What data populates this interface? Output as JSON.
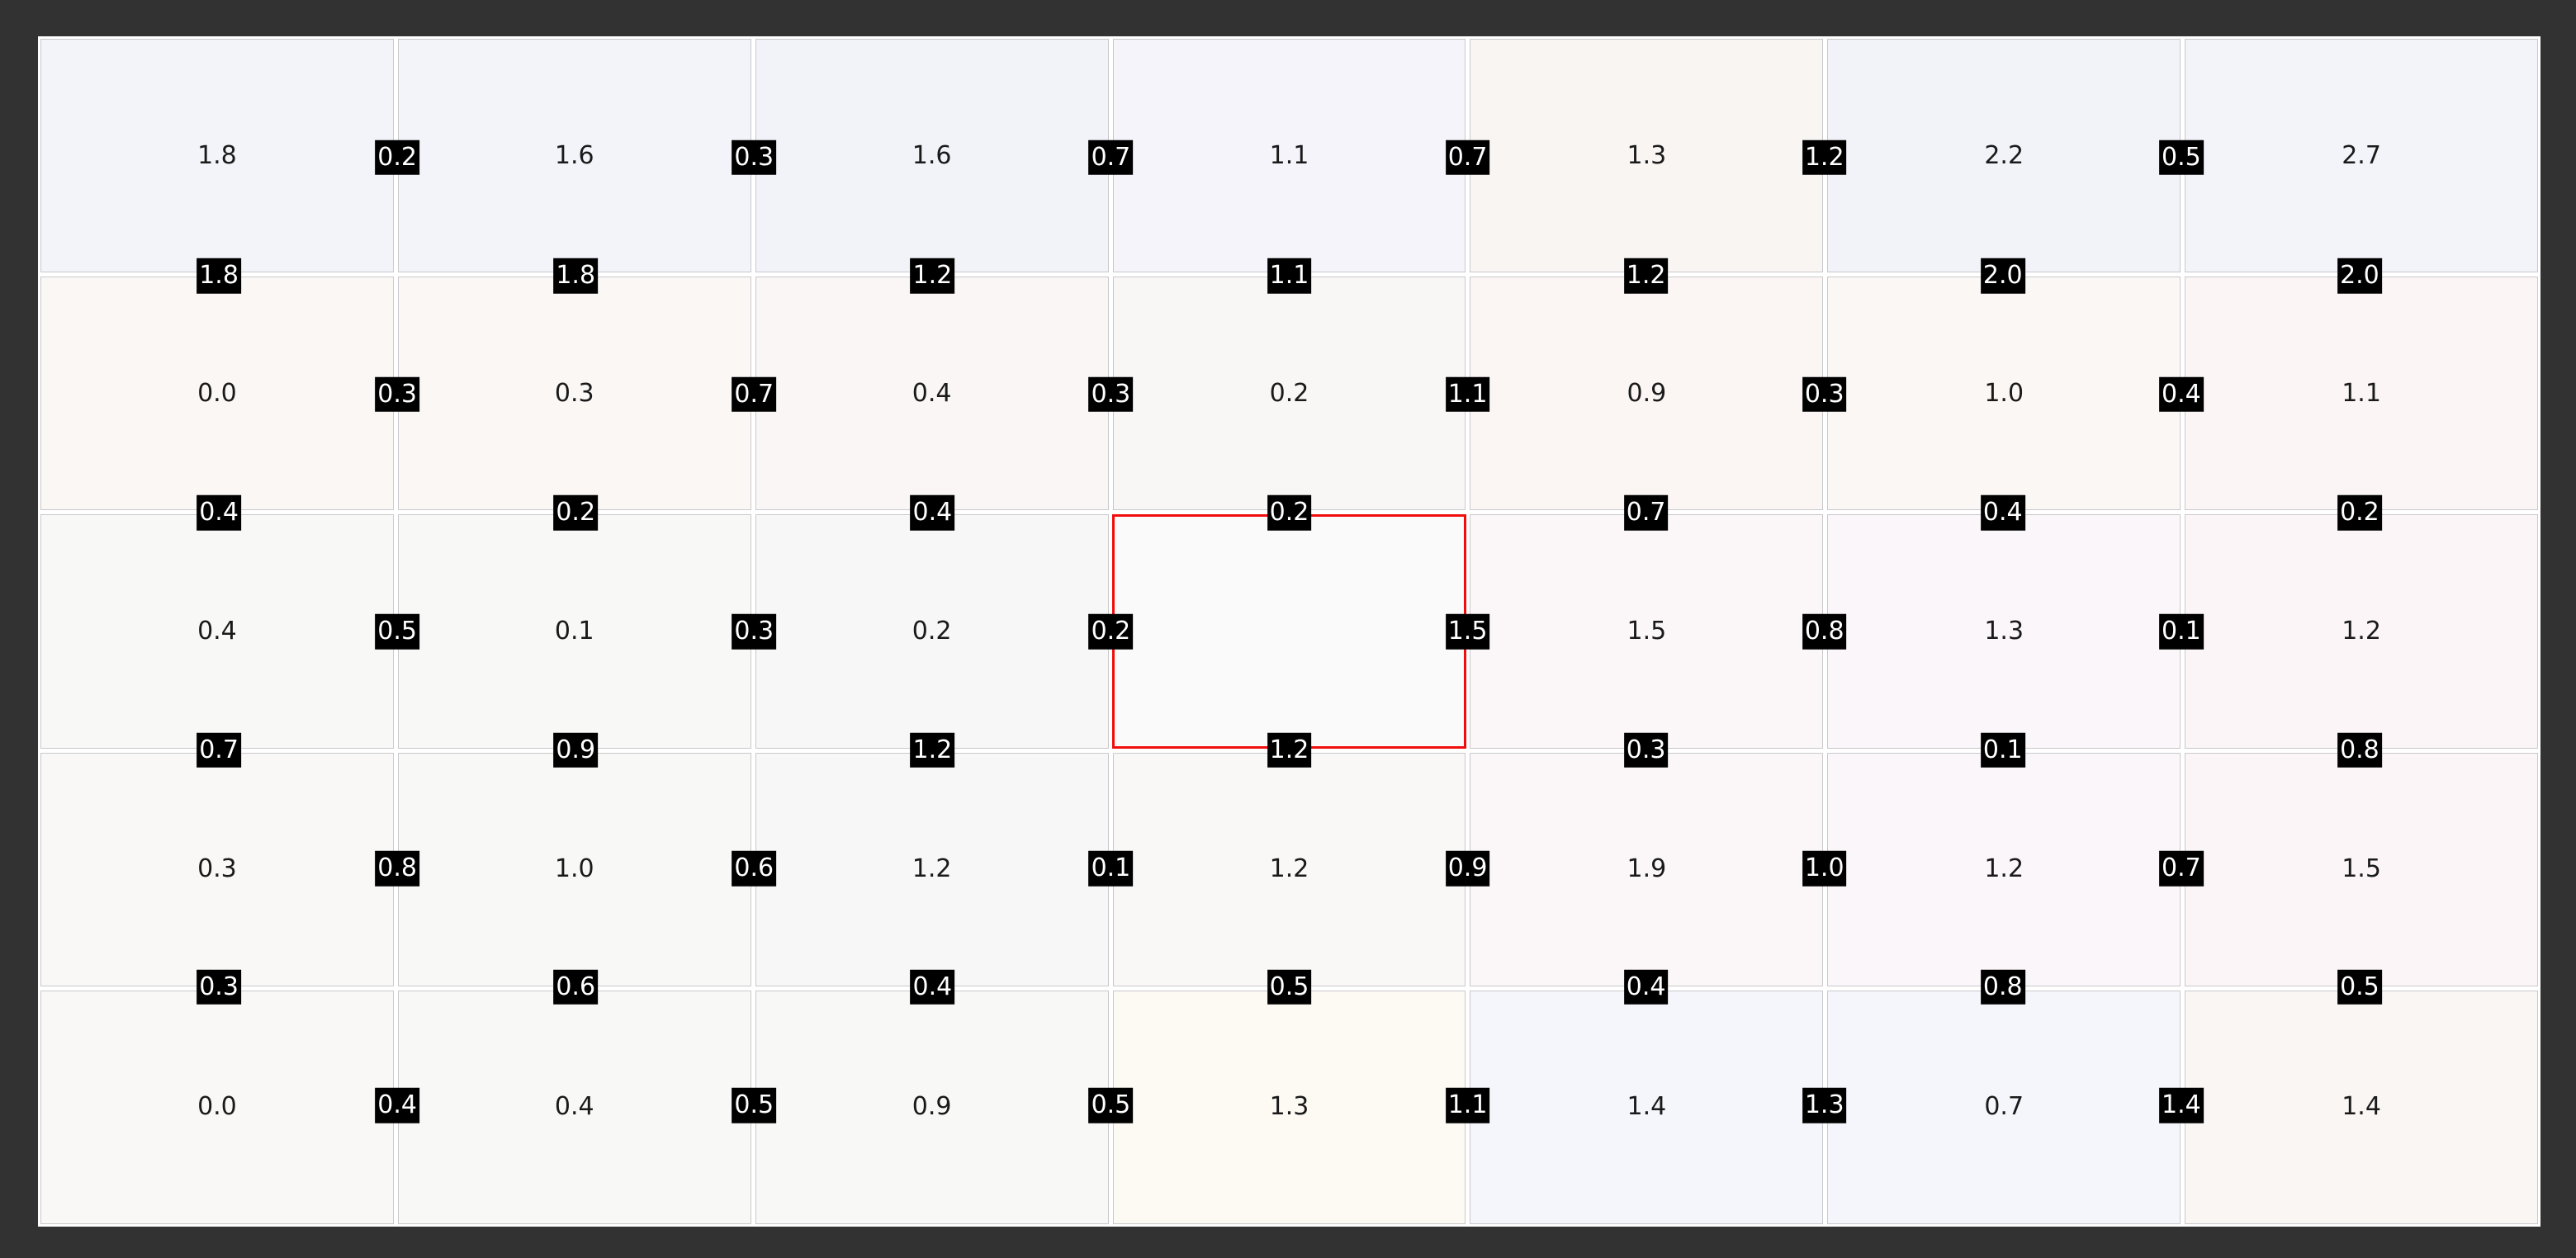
{
  "colors": {
    "frame_bg": "#323232",
    "board_bg": "#ffffff",
    "grid_line": "#c9c9cc",
    "node_text": "#1a1a1a",
    "badge_bg": "#000000",
    "badge_text": "#ffffff",
    "highlight_red": "#f20d0d"
  },
  "chart_data": {
    "type": "heatmap",
    "title": "",
    "xlabel": "",
    "ylabel": "",
    "legend": "none",
    "gridlines": true,
    "rows": 5,
    "cols": 7,
    "nodes": [
      [
        "1.8",
        "1.6",
        "1.6",
        "1.1",
        "1.3",
        "2.2",
        "2.7"
      ],
      [
        "0.0",
        "0.3",
        "0.4",
        "0.2",
        "0.9",
        "1.0",
        "1.1"
      ],
      [
        "0.4",
        "0.1",
        "0.2",
        null,
        "1.5",
        "1.3",
        "1.2"
      ],
      [
        "0.3",
        "1.0",
        "1.2",
        "1.2",
        "1.9",
        "1.2",
        "1.5"
      ],
      [
        "0.0",
        "0.4",
        "0.9",
        "1.3",
        "1.4",
        "0.7",
        "1.4"
      ]
    ],
    "h_edges": [
      [
        "0.2",
        "0.3",
        "0.7",
        "0.7",
        "1.2",
        "0.5"
      ],
      [
        "0.3",
        "0.7",
        "0.3",
        "1.1",
        "0.3",
        "0.4"
      ],
      [
        "0.5",
        "0.3",
        "0.2",
        "1.5",
        "0.8",
        "0.1"
      ],
      [
        "0.8",
        "0.6",
        "0.1",
        "0.9",
        "1.0",
        "0.7"
      ],
      [
        "0.4",
        "0.5",
        "0.5",
        "1.1",
        "1.3",
        "1.4"
      ]
    ],
    "v_edges": [
      [
        "1.8",
        "1.8",
        "1.2",
        "1.1",
        "1.2",
        "2.0",
        "2.0"
      ],
      [
        "0.4",
        "0.2",
        "0.4",
        "0.2",
        "0.7",
        "0.4",
        "0.2"
      ],
      [
        "0.7",
        "0.9",
        "1.2",
        "1.2",
        "0.3",
        "0.1",
        "0.8"
      ],
      [
        "0.3",
        "0.6",
        "0.4",
        "0.5",
        "0.4",
        "0.8",
        "0.5"
      ]
    ],
    "missing_cell": {
      "row_index": 2,
      "col_index": 3,
      "marker": "red-rectangle"
    },
    "cell_tints": [
      [
        "#f3f4fa",
        "#f3f4fa",
        "#f2f3f9",
        "#f4f4fa",
        "#f9f5f3",
        "#f2f2f9",
        "#f3f3fa"
      ],
      [
        "#faf7f5",
        "#faf7f5",
        "#f9f6f5",
        "#f9f6f6",
        "#fbf6f4",
        "#fbf7f5",
        "#fbf6f5"
      ],
      [
        "#f8f8f7",
        "#f8f8f7",
        "#f7f7f7",
        "#fafafa",
        "#fbf6f8",
        "#fbf6f9",
        "#fbf5f8"
      ],
      [
        "#f9f8f6",
        "#f8f8f6",
        "#f8f7f7",
        "#f9f8f7",
        "#fbf6f8",
        "#fbf6f9",
        "#fbf5f8"
      ],
      [
        "#f9f8f6",
        "#f8f8f6",
        "#f8f8f7",
        "#fdf9f3",
        "#f5f6fb",
        "#f5f6fc",
        "#faf6f4"
      ]
    ]
  }
}
